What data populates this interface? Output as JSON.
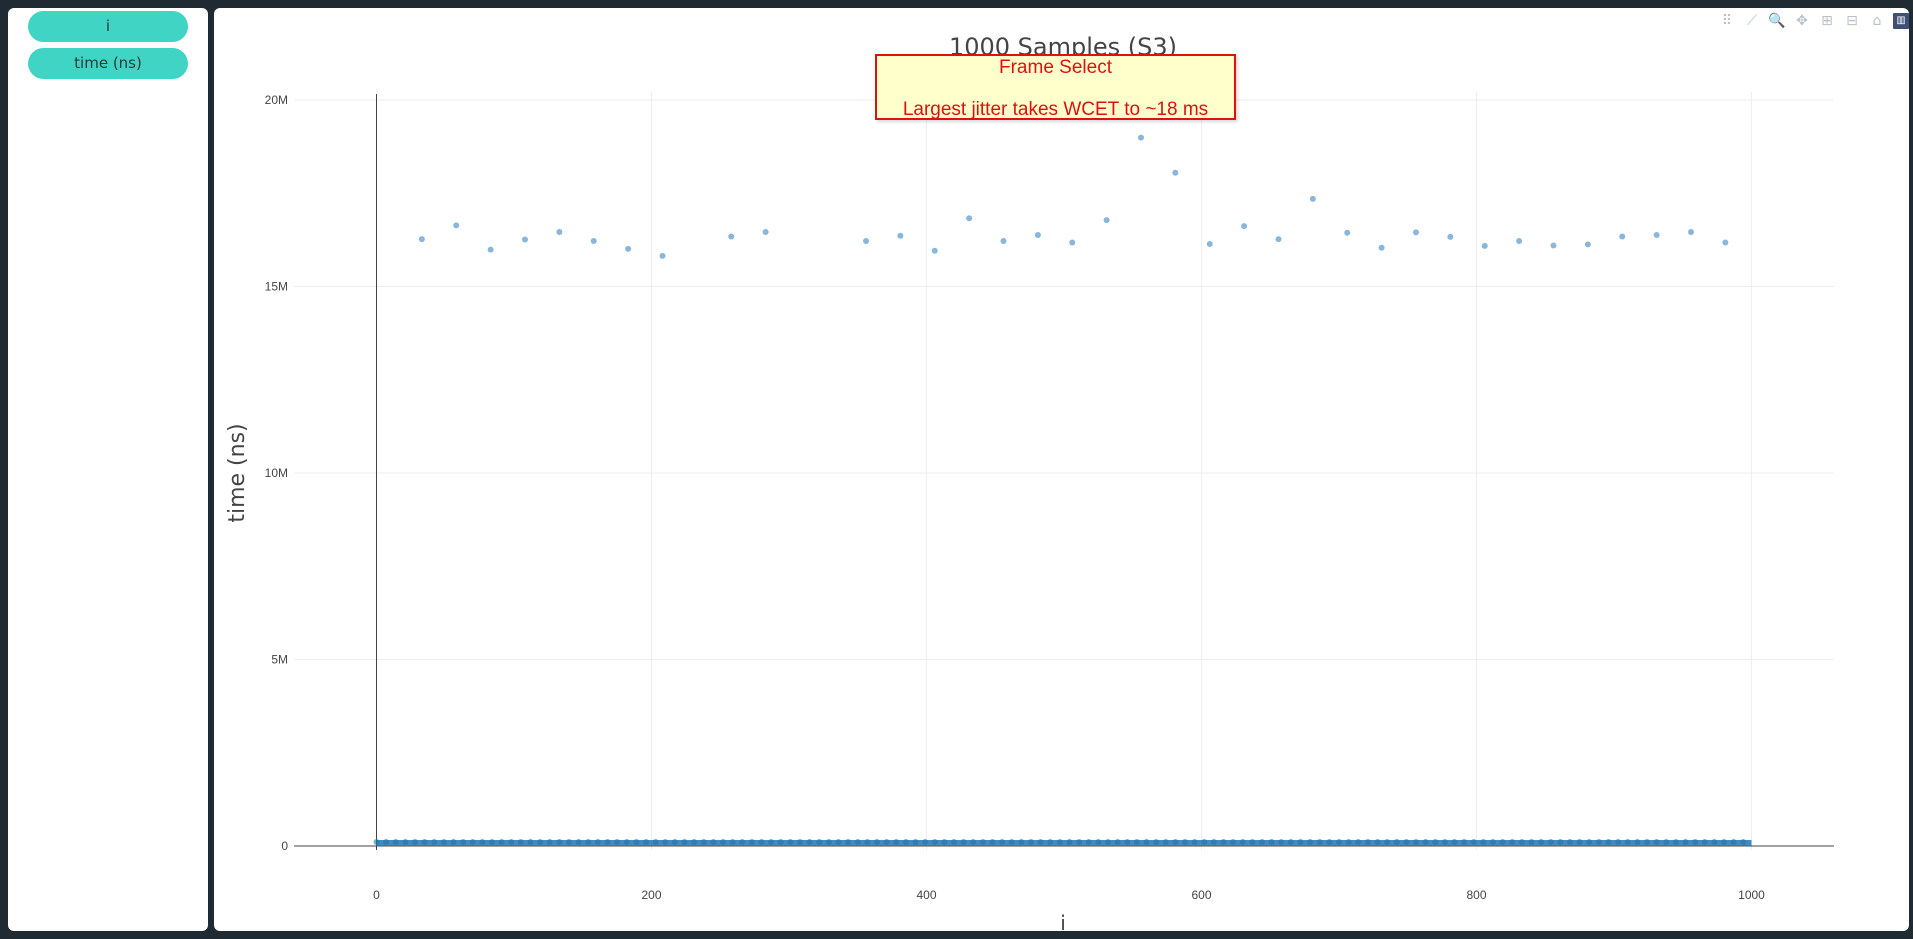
{
  "sidebar": {
    "buttons": [
      {
        "label": "i"
      },
      {
        "label": "time (ns)"
      }
    ]
  },
  "modebar": {
    "icons": [
      "scatter-icon",
      "line-icon",
      "zoom-icon",
      "pan-icon",
      "zoom-in-icon",
      "zoom-out-icon",
      "home-icon",
      "plotly-logo-icon"
    ]
  },
  "annotation": {
    "line1": "Frame Select",
    "line2": "Largest jitter takes WCET to ~18 ms",
    "bg_color": "#ffffcc",
    "border_color": "#dd1111"
  },
  "chart_data": {
    "type": "scatter",
    "title": "1000 Samples (S3)",
    "xlabel": "i",
    "ylabel": "time (ns)",
    "xlim": [
      -60,
      1060
    ],
    "ylim": [
      0,
      20000000
    ],
    "xticks": [
      0,
      200,
      400,
      600,
      800,
      1000
    ],
    "xtick_labels": [
      "0",
      "200",
      "400",
      "600",
      "800",
      "1000"
    ],
    "yticks": [
      0,
      5000000,
      10000000,
      15000000,
      20000000
    ],
    "ytick_labels": [
      "0",
      "5M",
      "10M",
      "15M",
      "20M"
    ],
    "grid": true,
    "marker_color": "#1f77b4",
    "series": [
      {
        "values_desc": "",
        "points": [
          [
            33,
            16270000
          ],
          [
            58,
            16640000
          ],
          [
            83,
            15990000
          ],
          [
            108,
            16260000
          ],
          [
            133,
            16460000
          ],
          [
            158,
            16220000
          ],
          [
            183,
            16010000
          ],
          [
            208,
            15820000
          ],
          [
            258,
            16340000
          ],
          [
            283,
            16460000
          ],
          [
            356,
            16220000
          ],
          [
            381,
            16360000
          ],
          [
            406,
            15960000
          ],
          [
            431,
            16830000
          ],
          [
            456,
            16220000
          ],
          [
            481,
            16380000
          ],
          [
            506,
            16180000
          ],
          [
            531,
            16780000
          ],
          [
            556,
            18990000
          ],
          [
            581,
            18050000
          ],
          [
            606,
            16140000
          ],
          [
            631,
            16620000
          ],
          [
            656,
            16270000
          ],
          [
            681,
            17350000
          ],
          [
            706,
            16440000
          ],
          [
            731,
            16040000
          ],
          [
            756,
            16450000
          ],
          [
            781,
            16330000
          ],
          [
            806,
            16090000
          ],
          [
            831,
            16220000
          ],
          [
            856,
            16100000
          ],
          [
            881,
            16130000
          ],
          [
            906,
            16340000
          ],
          [
            931,
            16380000
          ],
          [
            956,
            16460000
          ],
          [
            981,
            16180000
          ]
        ]
      }
    ],
    "baseline": {
      "x_start": 0,
      "x_end": 1000,
      "value": 80000
    }
  }
}
